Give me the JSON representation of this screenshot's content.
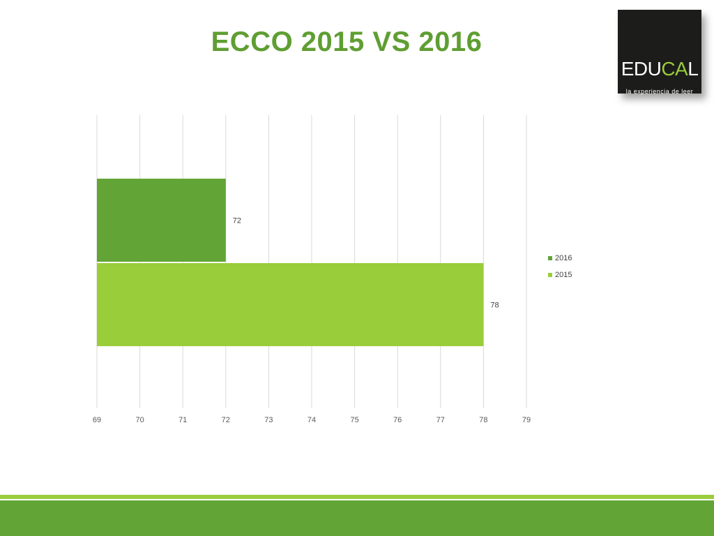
{
  "slide": {
    "title": "ECCO 2015 VS 2016"
  },
  "logo": {
    "word_part1": "EDU",
    "word_part2": "CA",
    "word_part3": "L",
    "tagline": "la experiencia de leer"
  },
  "colors": {
    "title": "#5f9e32",
    "series_2016": "#62a536",
    "series_2015": "#9acd3a",
    "grid": "#d9d9d9",
    "footer_dark": "#62a536",
    "footer_light": "#9acd3a",
    "logo_bg": "#1c1c1a"
  },
  "chart_data": {
    "type": "bar",
    "orientation": "horizontal",
    "title": "",
    "xlabel": "",
    "ylabel": "",
    "xlim": [
      69,
      79
    ],
    "x_ticks": [
      "69",
      "70",
      "71",
      "72",
      "73",
      "74",
      "75",
      "76",
      "77",
      "78",
      "79"
    ],
    "grid": true,
    "legend_position": "right",
    "series": [
      {
        "name": "2016",
        "value": 72,
        "label": "72",
        "color": "#62a536"
      },
      {
        "name": "2015",
        "value": 78,
        "label": "78",
        "color": "#9acd3a"
      }
    ]
  }
}
